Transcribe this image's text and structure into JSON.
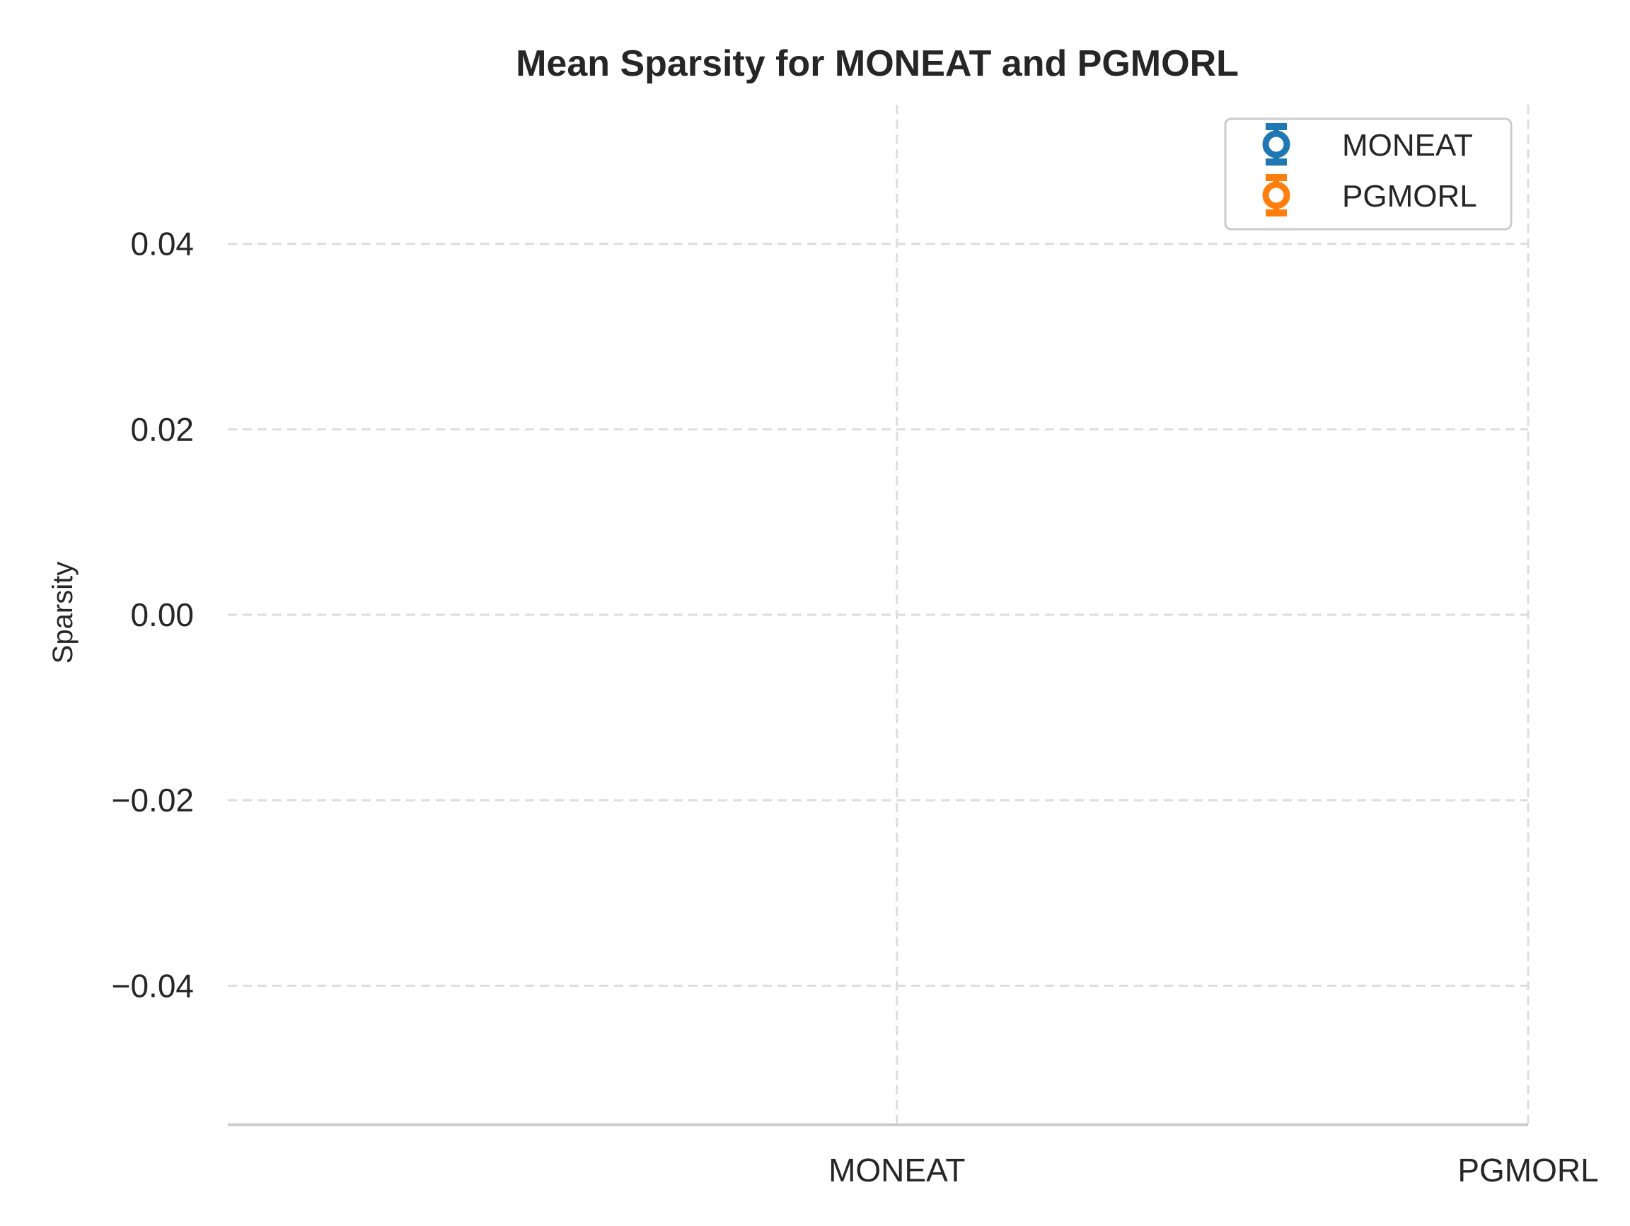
{
  "chart_data": {
    "type": "scatter",
    "title": "Mean Sparsity for MONEAT and PGMORL",
    "xlabel": "",
    "ylabel": "Sparsity",
    "categories": [
      "MONEAT",
      "PGMORL"
    ],
    "x_range": [
      -1.06,
      1.0
    ],
    "ylim": [
      -0.055,
      0.055
    ],
    "yticks": [
      0.04,
      0.02,
      0.0,
      -0.02,
      -0.04
    ],
    "ytick_labels": [
      "0.04",
      "0.02",
      "0.00",
      "−0.02",
      "−0.04"
    ],
    "grid": true,
    "legend_position": "upper right",
    "series": [
      {
        "name": "MONEAT",
        "color": "#1f77b4",
        "marker": "open-circle-with-errorbar",
        "values": [
          null,
          null
        ]
      },
      {
        "name": "PGMORL",
        "color": "#ff7f0e",
        "marker": "open-circle-with-errorbar",
        "values": [
          null,
          null
        ]
      }
    ]
  }
}
